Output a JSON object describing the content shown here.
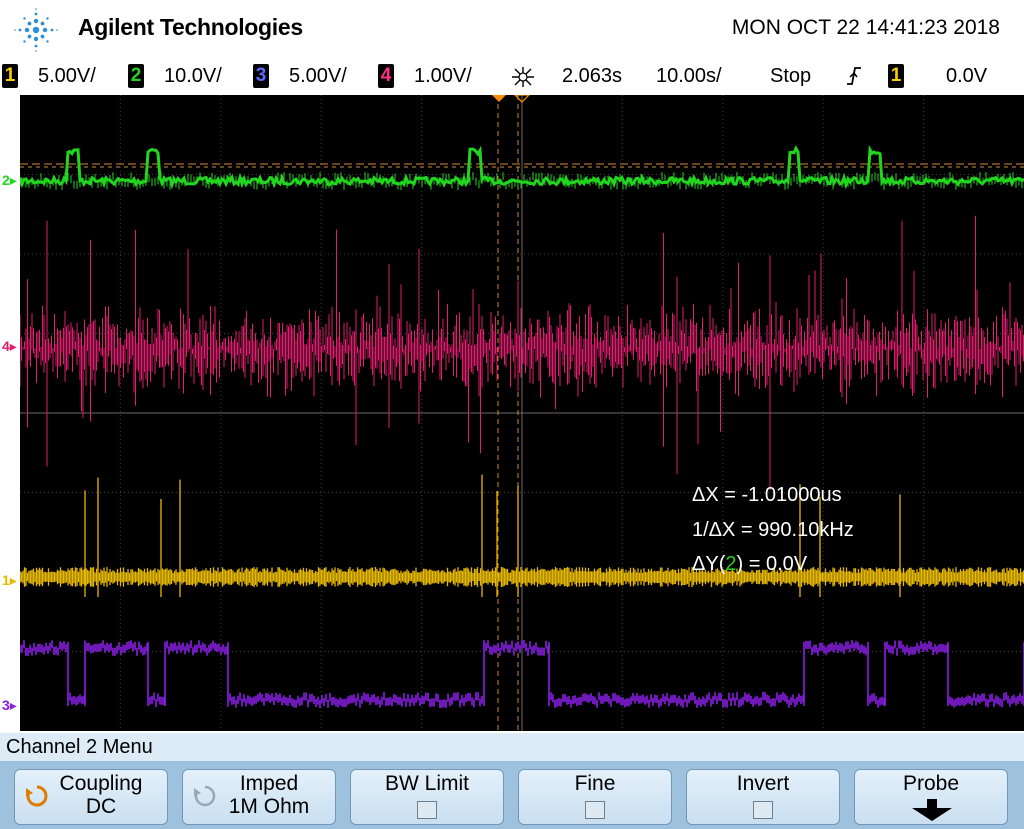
{
  "header": {
    "brand": "Agilent Technologies",
    "datetime": "MON OCT 22 14:41:23 2018"
  },
  "status": {
    "channels": [
      {
        "num": "1",
        "scale": "5.00V/",
        "color": "#f5d000"
      },
      {
        "num": "2",
        "scale": "10.0V/",
        "color": "#27d125"
      },
      {
        "num": "3",
        "scale": "5.00V/",
        "color": "#5b6cff"
      },
      {
        "num": "4",
        "scale": "1.00V/",
        "color": "#ff2f86"
      }
    ],
    "delay": "2.063s",
    "timebase": "10.00s/",
    "run_state": "Stop",
    "trigger_source": "1",
    "trigger_level": "0.0V"
  },
  "screen": {
    "channel_markers": [
      "2",
      "4",
      "1",
      "3"
    ],
    "trace_colors": {
      "ch1": "#e6b800",
      "ch2": "#22d51e",
      "ch3": "#8a1fe6",
      "ch4": "#e11d70"
    }
  },
  "cursors": {
    "delta_x": "ΔX = -1.01000us",
    "inv_delta_x": "1/ΔX = 990.10kHz",
    "delta_y_prefix": "ΔY(",
    "delta_y_channel": "2",
    "delta_y_suffix": ") = 0.0V"
  },
  "menu": {
    "title": "Channel 2  Menu",
    "softkeys": [
      {
        "label": "Coupling",
        "value": "DC"
      },
      {
        "label": "Imped",
        "value": "1M Ohm"
      },
      {
        "label": "BW Limit",
        "value": ""
      },
      {
        "label": "Fine",
        "value": ""
      },
      {
        "label": "Invert",
        "value": ""
      },
      {
        "label": "Probe",
        "value": ""
      }
    ]
  }
}
